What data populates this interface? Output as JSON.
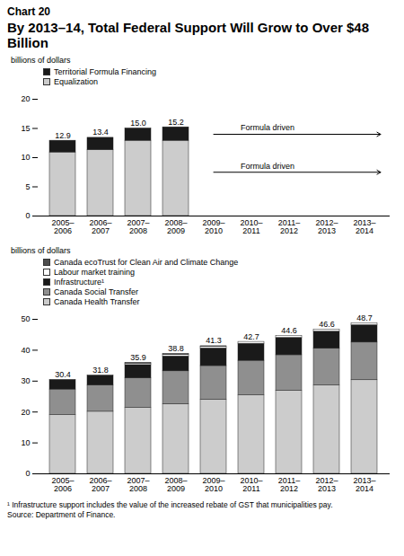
{
  "header": {
    "label": "Chart 20",
    "title": "By 2013–14, Total Federal Support Will Grow to Over $48 Billion"
  },
  "chart_data": [
    {
      "type": "bar",
      "stacked": true,
      "legend": "top-left",
      "y_label": "billions of dollars",
      "categories": [
        "2005–2006",
        "2006–2007",
        "2007–2008",
        "2008–2009",
        "2009–2010",
        "2010–2011",
        "2011–2012",
        "2012–2013",
        "2013–2014"
      ],
      "series": [
        {
          "name": "Equalization",
          "color": "#cccccc",
          "values": [
            10.9,
            11.3,
            12.9,
            12.9,
            null,
            null,
            null,
            null,
            null
          ]
        },
        {
          "name": "Territorial Formula Financing",
          "color": "#1a1a1a",
          "values": [
            2.0,
            2.1,
            2.1,
            2.3,
            null,
            null,
            null,
            null,
            null
          ]
        }
      ],
      "totals": [
        12.9,
        13.4,
        15.0,
        15.2,
        null,
        null,
        null,
        null,
        null
      ],
      "total_labels": [
        "12.9",
        "13.4",
        "15.0",
        "15.2",
        null,
        null,
        null,
        null,
        null
      ],
      "annotations": [
        {
          "text": "Formula driven",
          "x1": "2009–2010",
          "x2": "2013–2014",
          "y": 14
        },
        {
          "text": "Formula driven",
          "x1": "2009–2010",
          "x2": "2013–2014",
          "y": 7.5
        }
      ],
      "ylim": [
        0,
        20
      ],
      "yticks": [
        0,
        5,
        10,
        15,
        20
      ]
    },
    {
      "type": "bar",
      "stacked": true,
      "legend": "top-left",
      "y_label": "billions of dollars",
      "categories": [
        "2005–2006",
        "2006–2007",
        "2007–2008",
        "2008–2009",
        "2009–2010",
        "2010–2011",
        "2011–2012",
        "2012–2013",
        "2013–2014"
      ],
      "series": [
        {
          "name": "Canada Health Transfer",
          "color": "#cccccc",
          "values": [
            19.0,
            20.1,
            21.3,
            22.6,
            24.0,
            25.4,
            26.9,
            28.6,
            30.3
          ]
        },
        {
          "name": "Canada Social Transfer",
          "color": "#8f8f8f",
          "values": [
            8.3,
            8.5,
            9.6,
            10.6,
            10.9,
            11.2,
            11.5,
            11.9,
            12.2
          ]
        },
        {
          "name": "Infrastructure¹",
          "color": "#1a1a1a",
          "values": [
            3.1,
            3.2,
            4.3,
            4.8,
            5.7,
            5.5,
            5.6,
            5.5,
            5.6
          ]
        },
        {
          "name": "Labour market training",
          "color": "#ffffff",
          "values": [
            0,
            0,
            0.5,
            0.5,
            0.5,
            0.6,
            0.6,
            0.6,
            0.6
          ]
        },
        {
          "name": "Canada ecoTrust for Clean Air and Climate Change",
          "color": "#4d4d4d",
          "values": [
            0,
            0,
            0.2,
            0.3,
            0.2,
            0,
            0,
            0,
            0
          ]
        }
      ],
      "totals": [
        30.4,
        31.8,
        35.9,
        38.8,
        41.3,
        42.7,
        44.6,
        46.6,
        48.7
      ],
      "total_labels": [
        "30.4",
        "31.8",
        "35.9",
        "38.8",
        "41.3",
        "42.7",
        "44.6",
        "46.6",
        "48.7"
      ],
      "ylim": [
        0,
        50
      ],
      "yticks": [
        0,
        10,
        20,
        30,
        40,
        50
      ]
    }
  ],
  "footer": {
    "note": "¹ Infrastructure support includes the value of the increased rebate of GST that municipalities pay.",
    "source": "Source: Department of Finance."
  }
}
